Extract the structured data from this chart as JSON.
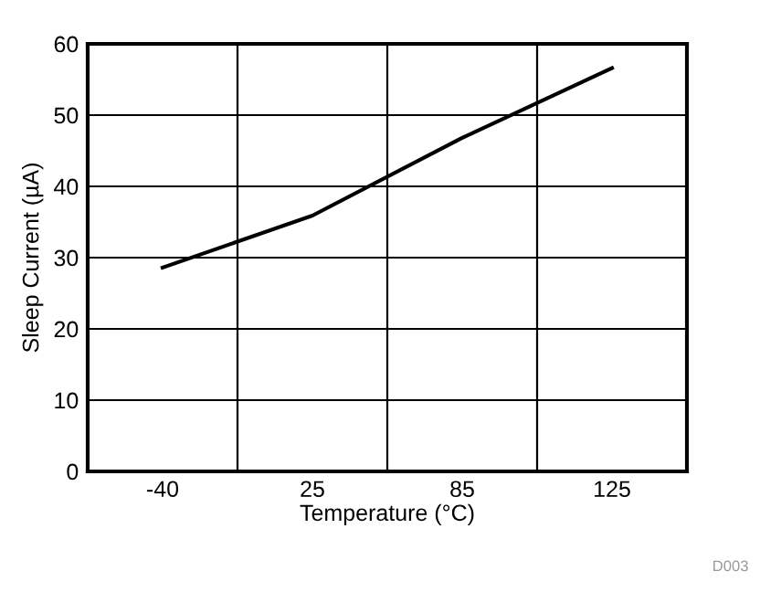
{
  "chart_data": {
    "type": "line",
    "xlabel": "Temperature (°C)",
    "ylabel": "Sleep Current (µA)",
    "categories": [
      "-40",
      "25",
      "85",
      "125"
    ],
    "series": [
      {
        "color": "#000000",
        "values": [
          28.6,
          35.9,
          46.8,
          56.6
        ]
      }
    ],
    "ylim": [
      0,
      60
    ],
    "yticks": [
      0,
      10,
      20,
      30,
      40,
      50,
      60
    ],
    "grid": true,
    "marker": "none",
    "line_style": "solid",
    "annotations": [
      "D003"
    ]
  }
}
